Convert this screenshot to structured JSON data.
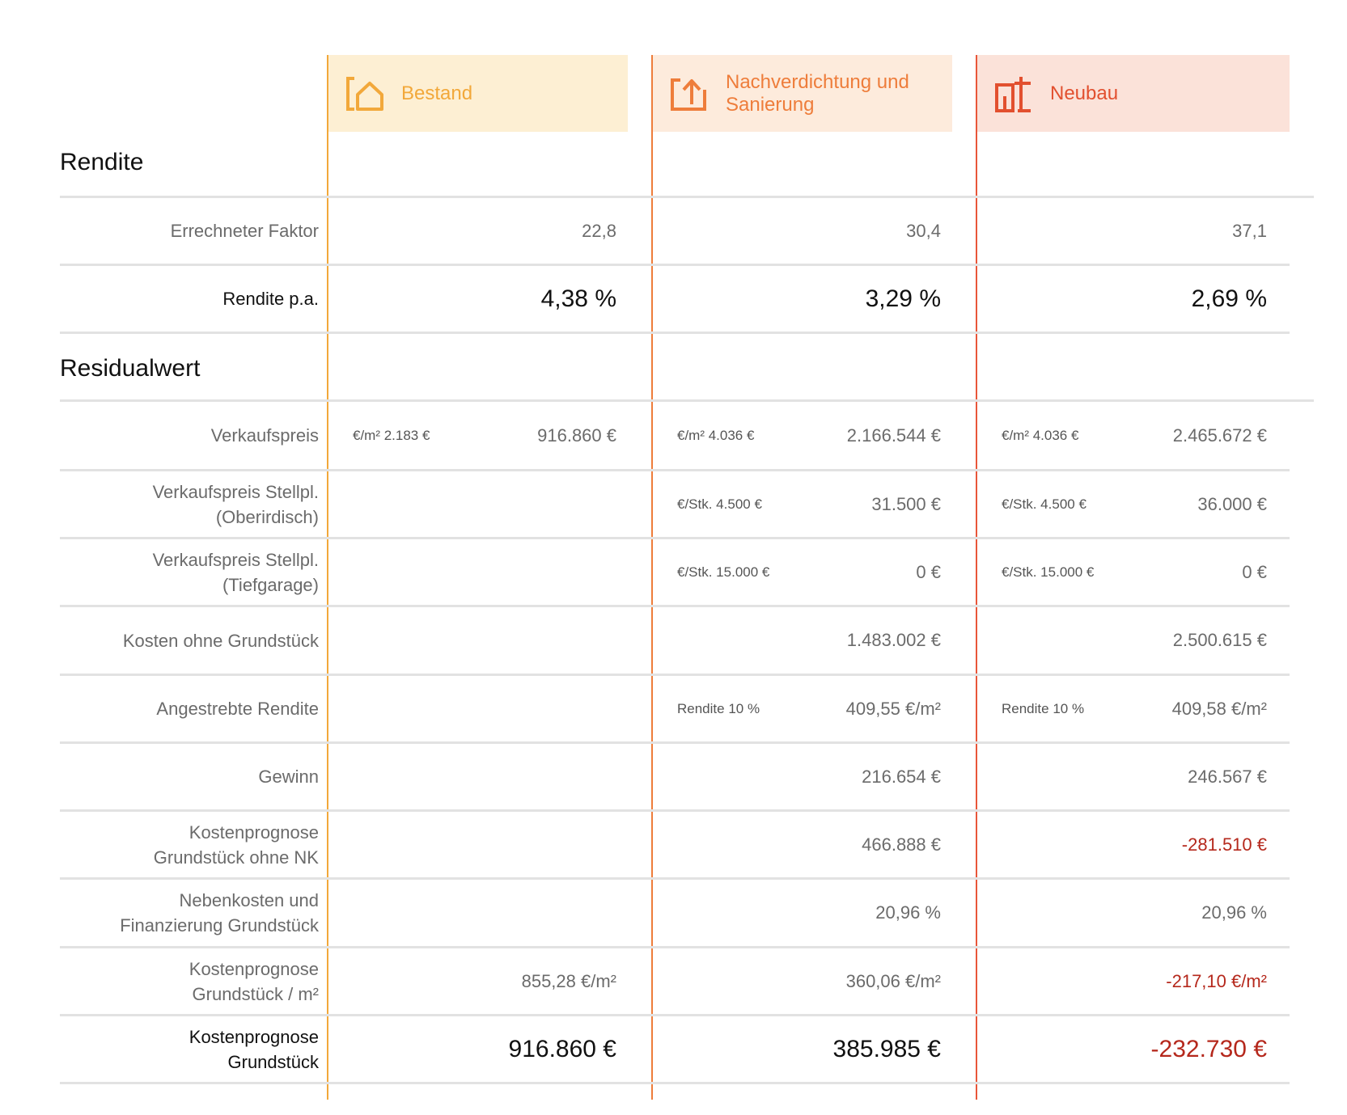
{
  "columns": [
    {
      "title": "Bestand",
      "icon": "house-icon",
      "accent": "#f2a83a",
      "head_bg": "#fdefd3",
      "title_color": "#f2a83a"
    },
    {
      "title": "Nachverdichtung und\nSanierung",
      "icon": "house-upload-icon",
      "accent": "#ee7d3b",
      "head_bg": "#fdebdc",
      "title_color": "#ee7d3b"
    },
    {
      "title": "Neubau",
      "icon": "building-crane-icon",
      "accent": "#e8563a",
      "head_bg": "#fbe2d9",
      "title_color": "#e2502f"
    }
  ],
  "sections": {
    "rendite": "Rendite",
    "residualwert": "Residualwert"
  },
  "rows": {
    "faktor": {
      "label": "Errechneter Faktor",
      "values": [
        "22,8",
        "30,4",
        "37,1"
      ]
    },
    "rendite_pa": {
      "label": "Rendite p.a.",
      "values": [
        "4,38 %",
        "3,29 %",
        "2,69 %"
      ]
    },
    "verkaufspreis": {
      "label": "Verkaufspreis",
      "subs": [
        "€/m² 2.183 €",
        "€/m² 4.036 €",
        "€/m² 4.036 €"
      ],
      "values": [
        "916.860 €",
        "2.166.544 €",
        "2.465.672 €"
      ]
    },
    "stellpl_ober": {
      "label": "Verkaufspreis Stellpl.\n(Oberirdisch)",
      "subs": [
        "",
        "€/Stk. 4.500 €",
        "€/Stk. 4.500 €"
      ],
      "values": [
        "",
        "31.500 €",
        "36.000 €"
      ]
    },
    "stellpl_tief": {
      "label": "Verkaufspreis Stellpl.\n(Tiefgarage)",
      "subs": [
        "",
        "€/Stk. 15.000 €",
        "€/Stk. 15.000 €"
      ],
      "values": [
        "",
        "0 €",
        "0 €"
      ]
    },
    "kosten": {
      "label": "Kosten ohne Grundstück",
      "values": [
        "",
        "1.483.002 €",
        "2.500.615 €"
      ]
    },
    "angestrebt": {
      "label": "Angestrebte Rendite",
      "subs": [
        "",
        "Rendite 10 %",
        "Rendite 10 %"
      ],
      "values": [
        "",
        "409,55 €/m²",
        "409,58 €/m²"
      ]
    },
    "gewinn": {
      "label": "Gewinn",
      "values": [
        "",
        "216.654 €",
        "246.567 €"
      ]
    },
    "prognose_ohne_nk": {
      "label": "Kostenprognose\nGrundstück ohne NK",
      "values": [
        "",
        "466.888 €",
        "-281.510 €"
      ]
    },
    "nebenkosten": {
      "label": "Nebenkosten und\nFinanzierung Grundstück",
      "values": [
        "",
        "20,96 %",
        "20,96 %"
      ]
    },
    "prognose_m2": {
      "label": "Kostenprognose\nGrundstück / m²",
      "values": [
        "855,28 €/m²",
        "360,06 €/m²",
        "-217,10 €/m²"
      ]
    },
    "prognose": {
      "label": "Kostenprognose\nGrundstück",
      "values": [
        "916.860 €",
        "385.985 €",
        "-232.730 €"
      ]
    }
  }
}
